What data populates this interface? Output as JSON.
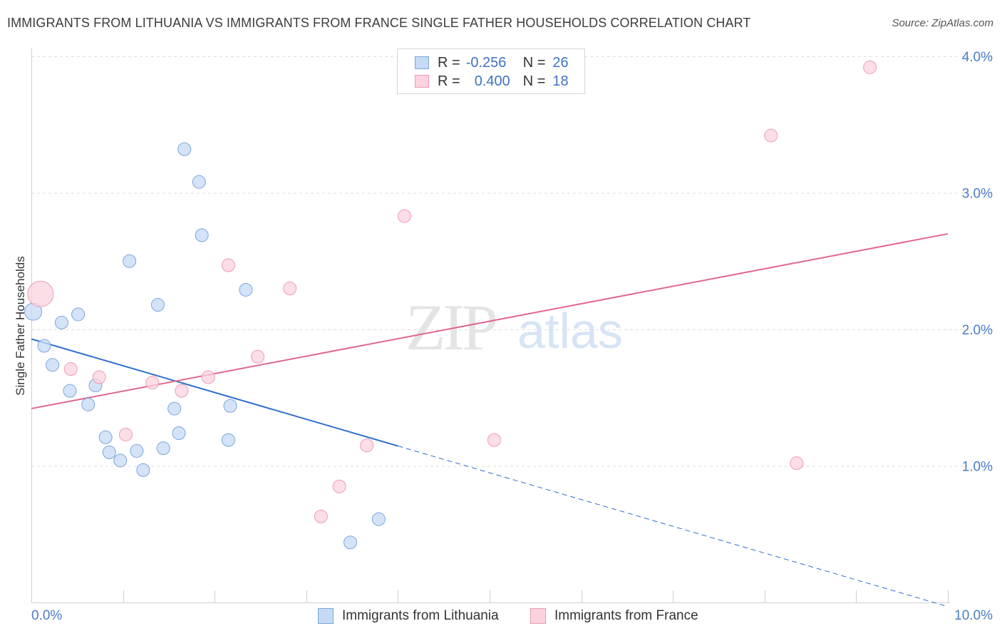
{
  "title": "IMMIGRANTS FROM LITHUANIA VS IMMIGRANTS FROM FRANCE SINGLE FATHER HOUSEHOLDS CORRELATION CHART",
  "source": "Source: ZipAtlas.com",
  "watermark": {
    "zip": "ZIP",
    "atlas": "atlas"
  },
  "legend": {
    "r_label": "R =",
    "n_label": "N =",
    "rows": [
      {
        "r": "-0.256",
        "n": "26",
        "color": "#a9c8f0"
      },
      {
        "r": "0.400",
        "n": "18",
        "color": "#f7bcd0"
      }
    ]
  },
  "colors": {
    "lithuania_fill": "#c6daf5",
    "lithuania_stroke": "#7aa5de",
    "lithuania_line": "#2c6fcf",
    "france_fill": "#fbd3df",
    "france_stroke": "#ef9ab5",
    "france_line": "#e0678e",
    "grid": "#dddddd",
    "axis_text": "#4a7cc6"
  },
  "chart_data": {
    "type": "scatter",
    "title": "IMMIGRANTS FROM LITHUANIA VS IMMIGRANTS FROM FRANCE SINGLE FATHER HOUSEHOLDS CORRELATION CHART",
    "xlabel": "",
    "ylabel": "Single Father Households",
    "xlim": [
      0,
      10
    ],
    "ylim": [
      0,
      4.1
    ],
    "x_tick_labels": {
      "0": "0.0%",
      "10": "10.0%"
    },
    "y_ticks": [
      1,
      2,
      3,
      4
    ],
    "y_tick_labels": [
      "1.0%",
      "2.0%",
      "3.0%",
      "4.0%"
    ],
    "grid": true,
    "legend_position": "top-center",
    "series": [
      {
        "name": "Immigrants from Lithuania",
        "r": -0.256,
        "n": 26,
        "points": [
          [
            0.02,
            2.13,
            12
          ],
          [
            0.33,
            2.05,
            9
          ],
          [
            0.51,
            2.11,
            9
          ],
          [
            0.14,
            1.88,
            9
          ],
          [
            0.23,
            1.74,
            9
          ],
          [
            0.42,
            1.55,
            9
          ],
          [
            0.62,
            1.45,
            9
          ],
          [
            0.7,
            1.59,
            9
          ],
          [
            0.81,
            1.21,
            9
          ],
          [
            0.85,
            1.1,
            9
          ],
          [
            0.97,
            1.04,
            9
          ],
          [
            1.07,
            2.5,
            9
          ],
          [
            1.15,
            1.11,
            9
          ],
          [
            1.22,
            0.97,
            9
          ],
          [
            1.38,
            2.18,
            9
          ],
          [
            1.44,
            1.13,
            9
          ],
          [
            1.56,
            1.42,
            9
          ],
          [
            1.61,
            1.24,
            9
          ],
          [
            1.67,
            3.32,
            9
          ],
          [
            1.83,
            3.08,
            9
          ],
          [
            1.86,
            2.69,
            9
          ],
          [
            2.15,
            1.19,
            9
          ],
          [
            2.17,
            1.44,
            9
          ],
          [
            2.34,
            2.29,
            9
          ],
          [
            3.48,
            0.44,
            9
          ],
          [
            3.79,
            0.61,
            9
          ]
        ],
        "trend": {
          "x0": 0,
          "y0": 1.93,
          "x1": 10,
          "y1": -0.03,
          "solid_until": 4.0
        }
      },
      {
        "name": "Immigrants from France",
        "r": 0.4,
        "n": 18,
        "points": [
          [
            0.1,
            2.26,
            18
          ],
          [
            0.43,
            1.71,
            9
          ],
          [
            0.74,
            1.65,
            9
          ],
          [
            1.03,
            1.23,
            9
          ],
          [
            1.32,
            1.61,
            9
          ],
          [
            1.64,
            1.55,
            9
          ],
          [
            1.93,
            1.65,
            9
          ],
          [
            2.15,
            2.47,
            9
          ],
          [
            2.47,
            1.8,
            9
          ],
          [
            2.82,
            2.3,
            9
          ],
          [
            3.16,
            0.63,
            9
          ],
          [
            3.36,
            0.85,
            9
          ],
          [
            3.66,
            1.15,
            9
          ],
          [
            4.07,
            2.83,
            9
          ],
          [
            5.05,
            1.19,
            9
          ],
          [
            8.07,
            3.42,
            9
          ],
          [
            8.35,
            1.02,
            9
          ],
          [
            9.15,
            3.92,
            9
          ]
        ],
        "trend": {
          "x0": 0,
          "y0": 1.42,
          "x1": 10,
          "y1": 2.7
        }
      }
    ]
  },
  "bottom_legend": [
    {
      "label": "Immigrants from Lithuania"
    },
    {
      "label": "Immigrants from France"
    }
  ]
}
